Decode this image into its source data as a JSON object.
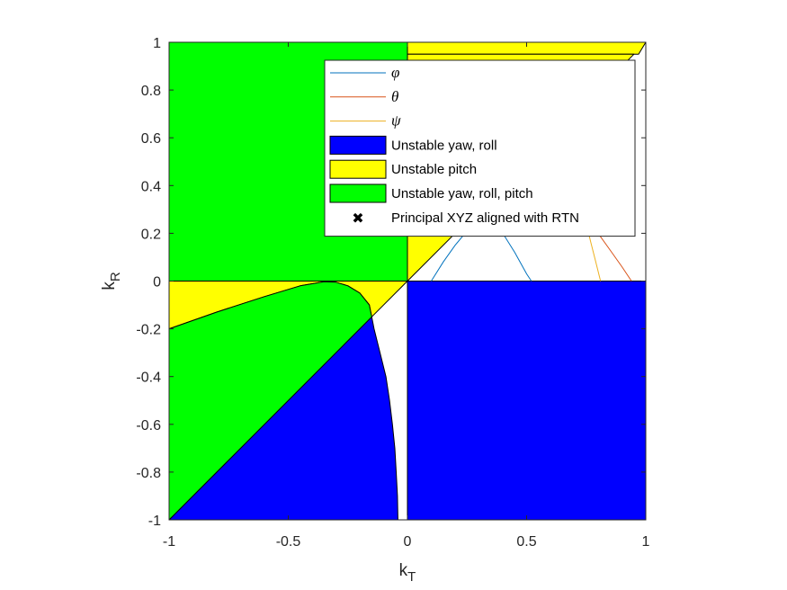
{
  "chart_data": {
    "type": "area",
    "xlabel": "k_T",
    "ylabel": "k_R",
    "xlim": [
      -1,
      1
    ],
    "ylim": [
      -1,
      1
    ],
    "xticks": [
      "-1",
      "-0.5",
      "0",
      "0.5",
      "1"
    ],
    "yticks": [
      "1",
      "0.8",
      "0.6",
      "0.4",
      "0.2",
      "0",
      "-0.2",
      "-0.4",
      "-0.6",
      "-0.8",
      "-1"
    ],
    "grid": false,
    "legend_position": "top-right",
    "regions": [
      {
        "name": "Unstable yaw, roll",
        "color": "#0000ff",
        "polygons": [
          [
            [
              0,
              0
            ],
            [
              1,
              0
            ],
            [
              1,
              -1
            ],
            [
              0,
              -1
            ]
          ],
          [
            [
              -1,
              -1
            ],
            [
              -0.15,
              -0.15
            ],
            [
              -0.14,
              -0.2
            ],
            [
              -0.115,
              -0.3
            ],
            [
              -0.09,
              -0.4
            ],
            [
              -0.075,
              -0.5
            ],
            [
              -0.063,
              -0.6
            ],
            [
              -0.053,
              -0.7
            ],
            [
              -0.047,
              -0.8
            ],
            [
              -0.042,
              -0.9
            ],
            [
              -0.04,
              -1
            ]
          ]
        ]
      },
      {
        "name": "Unstable pitch",
        "color": "#ffff00",
        "polygons": [
          [
            [
              0,
              1
            ],
            [
              1,
              1
            ],
            [
              0.97,
              0.95
            ],
            [
              0,
              0.95
            ]
          ],
          [
            [
              0,
              0.95
            ],
            [
              0.95,
              0.95
            ],
            [
              0.26,
              0.26
            ],
            [
              0,
              0.26
            ]
          ],
          [
            [
              -1,
              0
            ],
            [
              -1,
              -0.2
            ],
            [
              -0.8,
              -0.13
            ],
            [
              -0.6,
              -0.065
            ],
            [
              -0.45,
              -0.02
            ],
            [
              -0.35,
              -0.003
            ],
            [
              -0.3,
              -0.005
            ],
            [
              -0.25,
              -0.02
            ],
            [
              -0.2,
              -0.05
            ],
            [
              -0.16,
              -0.1
            ],
            [
              -0.15,
              -0.15
            ],
            [
              0,
              0
            ]
          ],
          [
            [
              0,
              0.26
            ],
            [
              0.26,
              0.26
            ],
            [
              0,
              0
            ]
          ]
        ]
      },
      {
        "name": "Unstable yaw, roll, pitch",
        "color": "#00ff00",
        "polygons": [
          [
            [
              -1,
              1
            ],
            [
              0,
              1
            ],
            [
              0,
              0
            ],
            [
              -1,
              0
            ]
          ],
          [
            [
              -1,
              -0.2
            ],
            [
              -0.8,
              -0.13
            ],
            [
              -0.6,
              -0.065
            ],
            [
              -0.45,
              -0.02
            ],
            [
              -0.35,
              -0.003
            ],
            [
              -0.3,
              -0.005
            ],
            [
              -0.25,
              -0.02
            ],
            [
              -0.2,
              -0.05
            ],
            [
              -0.16,
              -0.1
            ],
            [
              -0.15,
              -0.15
            ],
            [
              -1,
              -1
            ]
          ]
        ]
      }
    ],
    "series": [
      {
        "name": "φ",
        "color": "#0072bd",
        "x": [
          0.1,
          0.15,
          0.2,
          0.25,
          0.3,
          0.33,
          0.36,
          0.4,
          0.45,
          0.5,
          0.52
        ],
        "y": [
          0.0,
          0.08,
          0.15,
          0.21,
          0.25,
          0.26,
          0.24,
          0.2,
          0.12,
          0.03,
          0.0
        ]
      },
      {
        "name": "θ",
        "color": "#d95319",
        "x": [
          0.76,
          0.8,
          0.85,
          0.9,
          0.94
        ],
        "y": [
          0.24,
          0.2,
          0.13,
          0.06,
          0.0
        ]
      },
      {
        "name": "ψ",
        "color": "#edb120",
        "x": [
          0.75,
          0.77,
          0.79,
          0.81
        ],
        "y": [
          0.24,
          0.16,
          0.08,
          0.0
        ]
      }
    ],
    "markers": [
      {
        "name": "Principal XYZ aligned with RTN",
        "symbol": "✖",
        "color": "#000000"
      }
    ],
    "legend": [
      {
        "label": "φ",
        "kind": "line",
        "color": "#0072bd",
        "greek": true
      },
      {
        "label": "θ",
        "kind": "line",
        "color": "#d95319",
        "greek": true
      },
      {
        "label": "ψ",
        "kind": "line",
        "color": "#edb120",
        "greek": true
      },
      {
        "label": "Unstable yaw, roll",
        "kind": "patch",
        "color": "#0000ff",
        "greek": false
      },
      {
        "label": "Unstable pitch",
        "kind": "patch",
        "color": "#ffff00",
        "greek": false
      },
      {
        "label": "Unstable yaw, roll, pitch",
        "kind": "patch",
        "color": "#00ff00",
        "greek": false
      },
      {
        "label": "Principal XYZ aligned with RTN",
        "kind": "marker",
        "color": "#000000",
        "symbol": "✖",
        "greek": false
      }
    ]
  }
}
